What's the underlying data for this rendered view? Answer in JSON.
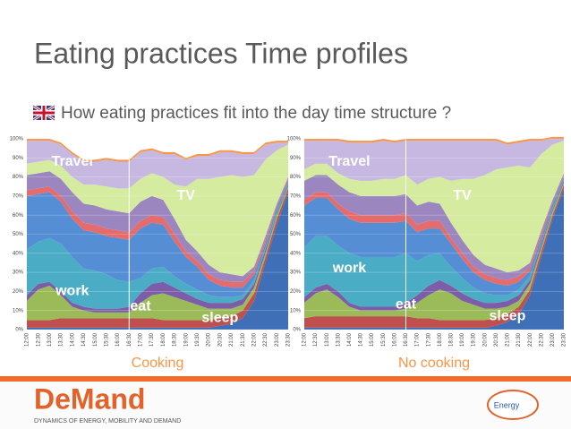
{
  "header": {
    "title": "Eating practices Time profiles",
    "subtitle": "How eating practices fit into the day time structure ?"
  },
  "chart_data": [
    {
      "type": "stacked-area",
      "x_label": "Cooking",
      "categories": [
        "12:00",
        "12:30",
        "13:00",
        "13:30",
        "14:00",
        "14:30",
        "15:00",
        "15:30",
        "16:00",
        "16:30",
        "17:00",
        "17:30",
        "18:00",
        "18:30",
        "19:00",
        "19:30",
        "20:00",
        "20:30",
        "21:00",
        "21:30",
        "22:00",
        "22:30",
        "23:00",
        "23:30"
      ],
      "ylim": [
        0,
        100
      ],
      "yticks": [
        {
          "value": 0,
          "label": "0%"
        },
        {
          "value": 10,
          "label": "10%"
        },
        {
          "value": 20,
          "label": "20%"
        },
        {
          "value": 30,
          "label": "30%"
        },
        {
          "value": 40,
          "label": "40%"
        },
        {
          "value": 50,
          "label": "50%"
        },
        {
          "value": 60,
          "label": "60%"
        },
        {
          "value": 70,
          "label": "70%"
        },
        {
          "value": 80,
          "label": "80%"
        },
        {
          "value": 90,
          "label": "90%"
        },
        {
          "value": 100,
          "label": "100%"
        }
      ],
      "grid": true,
      "series": [
        {
          "name": "sleep",
          "color": "#3f6fb6",
          "values": [
            1,
            1,
            1,
            1,
            1,
            1,
            1,
            1,
            1,
            1,
            1,
            1,
            1,
            1,
            1,
            1,
            1,
            2,
            3,
            6,
            15,
            35,
            55,
            72
          ]
        },
        {
          "color": "#c0504d",
          "values": [
            4,
            4,
            4,
            5,
            5,
            5,
            5,
            5,
            5,
            5,
            5,
            5,
            4,
            4,
            4,
            4,
            4,
            4,
            4,
            4,
            4,
            3,
            3,
            2
          ]
        },
        {
          "name": "eat",
          "color": "#9bbb59",
          "values": [
            10,
            16,
            18,
            12,
            6,
            4,
            3,
            3,
            3,
            3,
            8,
            12,
            14,
            12,
            10,
            8,
            6,
            5,
            4,
            3,
            3,
            2,
            2,
            1
          ]
        },
        {
          "color": "#7b5ea7",
          "values": [
            3,
            3,
            2,
            2,
            2,
            2,
            2,
            2,
            2,
            3,
            5,
            6,
            6,
            5,
            4,
            3,
            3,
            3,
            3,
            3,
            2,
            2,
            1,
            1
          ]
        },
        {
          "name": "work",
          "color": "#4bacc6",
          "values": [
            24,
            22,
            23,
            25,
            24,
            20,
            20,
            18,
            15,
            13,
            8,
            8,
            8,
            6,
            5,
            5,
            4,
            3,
            3,
            2,
            2,
            1,
            1,
            1
          ]
        },
        {
          "color": "#558ed5",
          "values": [
            28,
            25,
            24,
            22,
            20,
            20,
            20,
            20,
            22,
            22,
            26,
            24,
            22,
            18,
            14,
            12,
            8,
            6,
            5,
            4,
            3,
            2,
            2,
            1
          ]
        },
        {
          "color": "#e46c6c",
          "values": [
            3,
            3,
            3,
            3,
            4,
            4,
            4,
            4,
            4,
            4,
            4,
            4,
            4,
            4,
            3,
            3,
            3,
            3,
            3,
            3,
            2,
            2,
            1,
            1
          ]
        },
        {
          "color": "#9c86c0",
          "values": [
            8,
            8,
            8,
            9,
            10,
            10,
            10,
            10,
            10,
            10,
            10,
            10,
            9,
            8,
            6,
            5,
            5,
            4,
            4,
            3,
            2,
            2,
            1,
            1
          ]
        },
        {
          "name": "TV",
          "color": "#d4eba0",
          "values": [
            6,
            6,
            6,
            7,
            8,
            10,
            11,
            12,
            12,
            13,
            12,
            12,
            12,
            18,
            28,
            38,
            45,
            50,
            52,
            52,
            48,
            40,
            28,
            17
          ]
        },
        {
          "name": "Travel",
          "color": "#c6b8e0",
          "values": [
            12,
            11,
            10,
            11,
            12,
            12,
            12,
            14,
            14,
            14,
            14,
            12,
            12,
            16,
            14,
            12,
            12,
            13,
            12,
            12,
            11,
            8,
            4,
            1
          ]
        },
        {
          "color": "#f79646",
          "values": [
            1,
            1,
            1,
            1,
            1,
            1,
            1,
            1,
            1,
            1,
            1,
            1,
            1,
            1,
            1,
            1,
            1,
            1,
            1,
            1,
            1,
            1,
            1,
            1
          ]
        }
      ]
    },
    {
      "type": "stacked-area",
      "x_label": "No cooking",
      "categories": [
        "12:00",
        "12:30",
        "13:00",
        "13:30",
        "14:00",
        "14:30",
        "15:00",
        "15:30",
        "16:00",
        "16:30",
        "17:00",
        "17:30",
        "18:00",
        "18:30",
        "19:00",
        "19:30",
        "20:00",
        "20:30",
        "21:00",
        "21:30",
        "22:00",
        "22:30",
        "23:00",
        "23:30"
      ],
      "ylim": [
        0,
        100
      ],
      "yticks": [
        {
          "value": 0,
          "label": "0%"
        },
        {
          "value": 10,
          "label": "10%"
        },
        {
          "value": 20,
          "label": "20%"
        },
        {
          "value": 30,
          "label": "30%"
        },
        {
          "value": 40,
          "label": "40%"
        },
        {
          "value": 50,
          "label": "50%"
        },
        {
          "value": 60,
          "label": "60%"
        },
        {
          "value": 70,
          "label": "70%"
        },
        {
          "value": 80,
          "label": "80%"
        },
        {
          "value": 90,
          "label": "90%"
        },
        {
          "value": 100,
          "label": "100%"
        }
      ],
      "grid": true,
      "series": [
        {
          "name": "sleep",
          "color": "#3f6fb6",
          "values": [
            1,
            1,
            1,
            1,
            1,
            1,
            1,
            1,
            1,
            1,
            1,
            1,
            1,
            1,
            1,
            1,
            1,
            2,
            4,
            8,
            18,
            38,
            58,
            74
          ]
        },
        {
          "color": "#c0504d",
          "values": [
            5,
            6,
            6,
            6,
            6,
            6,
            6,
            6,
            6,
            6,
            5,
            5,
            4,
            4,
            4,
            4,
            4,
            4,
            4,
            4,
            3,
            3,
            2,
            2
          ]
        },
        {
          "name": "eat",
          "color": "#9bbb59",
          "values": [
            8,
            12,
            14,
            10,
            5,
            3,
            3,
            3,
            3,
            4,
            8,
            12,
            16,
            14,
            10,
            8,
            6,
            5,
            4,
            3,
            3,
            2,
            2,
            1
          ]
        },
        {
          "color": "#7b5ea7",
          "values": [
            3,
            3,
            3,
            3,
            2,
            2,
            2,
            2,
            2,
            3,
            4,
            5,
            5,
            4,
            4,
            3,
            3,
            3,
            3,
            3,
            2,
            2,
            1,
            1
          ]
        },
        {
          "name": "work",
          "color": "#4bacc6",
          "values": [
            26,
            27,
            25,
            24,
            26,
            26,
            26,
            26,
            26,
            26,
            18,
            16,
            14,
            10,
            8,
            6,
            5,
            4,
            3,
            3,
            2,
            1,
            1,
            1
          ]
        },
        {
          "color": "#558ed5",
          "values": [
            22,
            20,
            20,
            19,
            18,
            18,
            18,
            18,
            18,
            17,
            15,
            14,
            13,
            12,
            10,
            8,
            7,
            6,
            5,
            4,
            3,
            2,
            2,
            1
          ]
        },
        {
          "color": "#e46c6c",
          "values": [
            3,
            3,
            3,
            3,
            4,
            4,
            4,
            4,
            4,
            4,
            4,
            4,
            4,
            3,
            3,
            3,
            3,
            3,
            3,
            3,
            2,
            2,
            1,
            1
          ]
        },
        {
          "color": "#9c86c0",
          "values": [
            10,
            9,
            9,
            10,
            10,
            10,
            10,
            10,
            10,
            10,
            10,
            10,
            9,
            8,
            7,
            6,
            5,
            5,
            4,
            3,
            2,
            2,
            1,
            1
          ]
        },
        {
          "name": "TV",
          "color": "#d4eba0",
          "values": [
            6,
            6,
            6,
            6,
            7,
            8,
            8,
            9,
            9,
            10,
            11,
            12,
            14,
            22,
            32,
            40,
            47,
            52,
            55,
            55,
            50,
            40,
            29,
            17
          ]
        },
        {
          "name": "Travel",
          "color": "#c6b8e0",
          "values": [
            15,
            12,
            12,
            17,
            19,
            20,
            20,
            20,
            19,
            18,
            23,
            20,
            19,
            21,
            20,
            20,
            18,
            15,
            12,
            12,
            14,
            7,
            3,
            1
          ]
        },
        {
          "color": "#f79646",
          "values": [
            1,
            1,
            1,
            1,
            1,
            1,
            1,
            1,
            1,
            1,
            1,
            1,
            1,
            1,
            1,
            1,
            1,
            1,
            1,
            1,
            1,
            1,
            1,
            1
          ]
        }
      ]
    }
  ],
  "footer": {
    "logo": "DeMand",
    "tagline": "DYNAMICS OF ENERGY, MOBILITY AND DEMAND",
    "badge": "Energy"
  }
}
